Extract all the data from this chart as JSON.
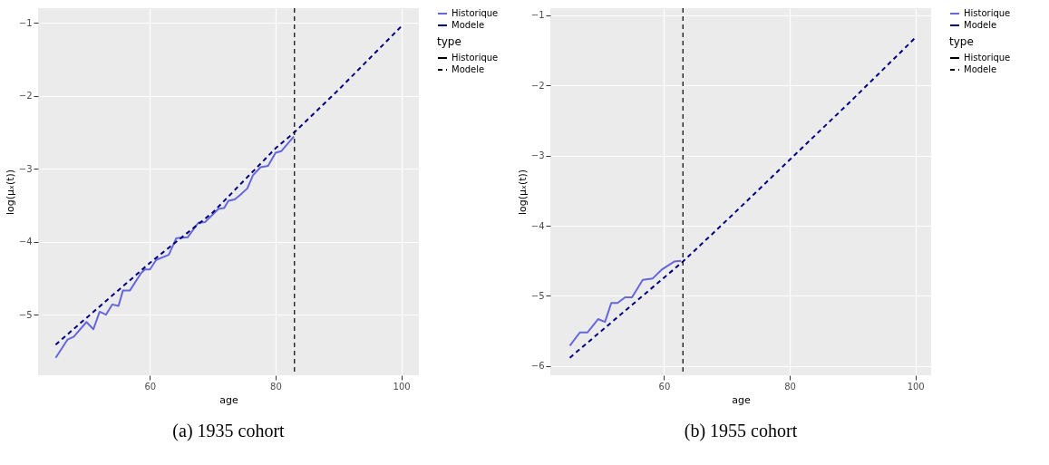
{
  "chart_data": [
    {
      "type": "line",
      "title": "(a) 1935 cohort",
      "xlabel": "age",
      "ylabel": "log(μₓ(t))",
      "legend_title": "type",
      "grid": true,
      "legend": "right",
      "xlim": [
        42.2,
        102.8
      ],
      "xticks": [
        60,
        80,
        100
      ],
      "ylim": [
        -5.83,
        -0.8
      ],
      "yticks": [
        -5,
        -4,
        -3,
        -2,
        -1
      ],
      "series": [
        {
          "name": "Historique",
          "color": "#6666dd",
          "line_style": "solid",
          "x": [
            45,
            46.9,
            47.9,
            49.9,
            51,
            52,
            53,
            54,
            55,
            55.7,
            56.8,
            58.6,
            59.2,
            60,
            61,
            63,
            64.2,
            66,
            67.7,
            68.8,
            70.9,
            71.8,
            72.5,
            73.5,
            74.5,
            75.5,
            76.4,
            77.6,
            78.8,
            80,
            80.9,
            82.9
          ],
          "values": [
            -5.59,
            -5.34,
            -5.3,
            -5.1,
            -5.2,
            -4.96,
            -5.0,
            -4.86,
            -4.88,
            -4.67,
            -4.67,
            -4.43,
            -4.38,
            -4.38,
            -4.25,
            -4.18,
            -3.95,
            -3.94,
            -3.74,
            -3.73,
            -3.55,
            -3.54,
            -3.44,
            -3.42,
            -3.35,
            -3.27,
            -3.09,
            -2.98,
            -2.96,
            -2.78,
            -2.76,
            -2.56
          ]
        },
        {
          "name": "Modele",
          "color": "#000080",
          "line_style": "dashed",
          "x": [
            45,
            60,
            70,
            80,
            83,
            90,
            100
          ],
          "values": [
            -5.41,
            -4.29,
            -3.6,
            -2.72,
            -2.5,
            -1.92,
            -1.05
          ]
        }
      ],
      "ref_lines": [
        {
          "axis": "x",
          "value": 83,
          "color": "#000000",
          "line_style": "dashed"
        }
      ]
    },
    {
      "type": "line",
      "title": "(b) 1955 cohort",
      "xlabel": "age",
      "ylabel": "log(μₓ(t))",
      "legend_title": "type",
      "grid": true,
      "legend": "right",
      "xlim": [
        41.9,
        102.5
      ],
      "xticks": [
        60,
        80,
        100
      ],
      "ylim": [
        -6.13,
        -0.9
      ],
      "yticks": [
        -6,
        -5,
        -4,
        -3,
        -2,
        -1
      ],
      "series": [
        {
          "name": "Historique",
          "color": "#6666dd",
          "line_style": "solid",
          "x": [
            45,
            46.6,
            47.8,
            49.5,
            50.6,
            51.6,
            52.6,
            53.8,
            54.9,
            56.6,
            58.2,
            59.7,
            61.6,
            62.7
          ],
          "values": [
            -5.71,
            -5.52,
            -5.52,
            -5.33,
            -5.37,
            -5.1,
            -5.1,
            -5.02,
            -5.02,
            -4.77,
            -4.75,
            -4.62,
            -4.51,
            -4.5
          ]
        },
        {
          "name": "Modele",
          "color": "#000080",
          "line_style": "dashed",
          "x": [
            45,
            50,
            55,
            63,
            70,
            80,
            90,
            100
          ],
          "values": [
            -5.88,
            -5.5,
            -5.12,
            -4.51,
            -3.92,
            -3.06,
            -2.2,
            -1.32
          ]
        }
      ],
      "ref_lines": [
        {
          "axis": "x",
          "value": 63,
          "color": "#000000",
          "line_style": "dashed"
        }
      ]
    }
  ]
}
